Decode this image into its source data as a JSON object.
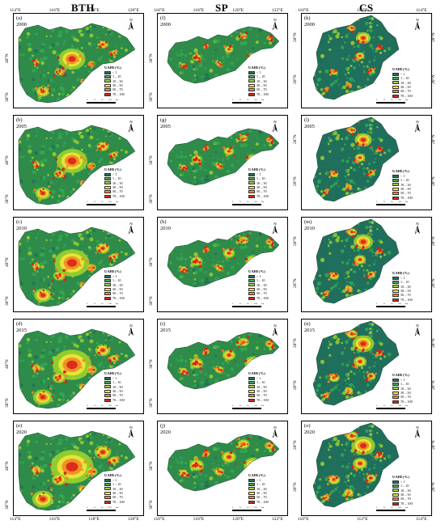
{
  "columns": [
    {
      "title": "BTH",
      "top_ticks": [
        "114°E",
        "116°E",
        "118°E",
        "120°E"
      ],
      "bottom_ticks": [
        "114°E",
        "116°E",
        "118°E",
        "120°E"
      ],
      "left_lat": [
        "40°N",
        "38°N"
      ]
    },
    {
      "title": "SP",
      "top_ticks": [
        "116°E",
        "118°E",
        "120°E",
        "122°E"
      ],
      "bottom_ticks": [
        "116°E",
        "118°E",
        "120°E",
        "122°E"
      ],
      "left_lat": [
        "38°N",
        "36°N"
      ]
    },
    {
      "title": "CS",
      "top_ticks": [
        "110°E",
        "112°E",
        "114°E"
      ],
      "bottom_ticks": [
        "110°E",
        "112°E",
        "114°E"
      ],
      "right_lat": [
        "28°N",
        "26°N"
      ]
    }
  ],
  "panels": [
    {
      "id": "a",
      "label": "(a)",
      "year": "2000"
    },
    {
      "id": "b",
      "label": "(b)",
      "year": "2005"
    },
    {
      "id": "c",
      "label": "(c)",
      "year": "2010"
    },
    {
      "id": "d",
      "label": "(d)",
      "year": "2015"
    },
    {
      "id": "e",
      "label": "(e)",
      "year": "2020"
    },
    {
      "id": "f",
      "label": "(f)",
      "year": "2000"
    },
    {
      "id": "g",
      "label": "(g)",
      "year": "2005"
    },
    {
      "id": "h",
      "label": "(h)",
      "year": "2010"
    },
    {
      "id": "i",
      "label": "(i)",
      "year": "2015"
    },
    {
      "id": "j",
      "label": "(j)",
      "year": "2020"
    },
    {
      "id": "k",
      "label": "(k)",
      "year": "2000"
    },
    {
      "id": "l",
      "label": "(l)",
      "year": "2005"
    },
    {
      "id": "m",
      "label": "(m)",
      "year": "2010"
    },
    {
      "id": "n",
      "label": "(n)",
      "year": "2015"
    },
    {
      "id": "o",
      "label": "(o)",
      "year": "2020"
    }
  ],
  "legend": {
    "title": "UAHI (%)",
    "items": [
      {
        "label": "< 1",
        "color": "#1f6f5c"
      },
      {
        "label": "1 – 10",
        "color": "#35a852"
      },
      {
        "label": "10 – 30",
        "color": "#9bd12e"
      },
      {
        "label": "30 – 50",
        "color": "#f2e53a"
      },
      {
        "label": "50 – 70",
        "color": "#f08a24"
      },
      {
        "label": "70 – 100",
        "color": "#d9221b"
      }
    ]
  },
  "north_arrow": "N",
  "scale_labels": [
    "0",
    "25",
    "50",
    "100",
    "km"
  ],
  "base_fill_color": "#2e8b4a"
}
